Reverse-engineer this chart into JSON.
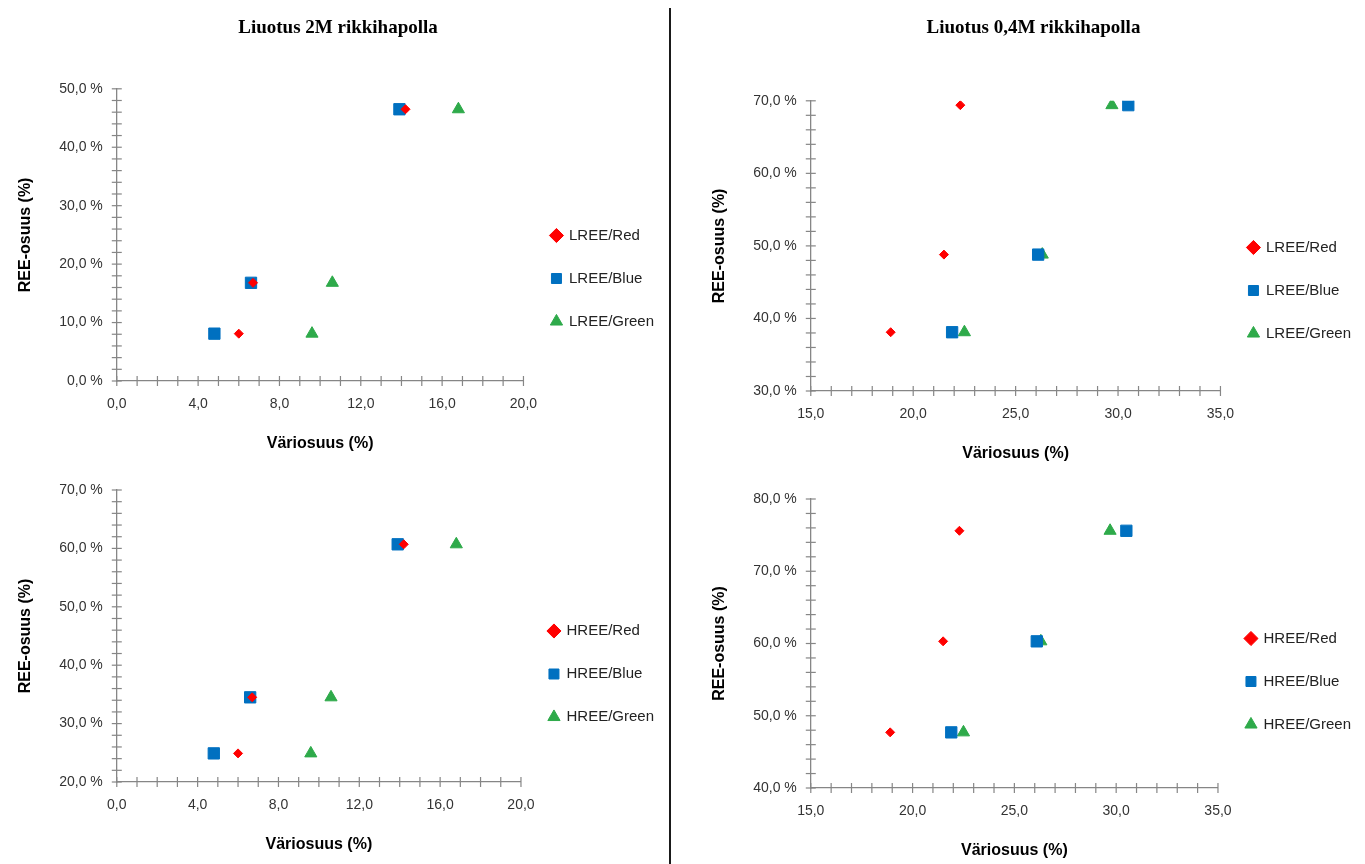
{
  "chart_data": [
    {
      "type": "scatter",
      "title": "Liuotus 2M rikkihapolla",
      "xlabel": "Väriosuus (%)",
      "ylabel": "REE-osuus (%)",
      "legend": "right",
      "xlim": [
        0,
        20
      ],
      "ylim": [
        0,
        50
      ],
      "xticks": [
        {
          "value": 0,
          "label": "0,0"
        },
        {
          "value": 1,
          "label": null
        },
        {
          "value": 2,
          "label": null
        },
        {
          "value": 3,
          "label": null
        },
        {
          "value": 4,
          "label": "4,0"
        },
        {
          "value": 5,
          "label": null
        },
        {
          "value": 6,
          "label": null
        },
        {
          "value": 7,
          "label": null
        },
        {
          "value": 8,
          "label": "8,0"
        },
        {
          "value": 9,
          "label": null
        },
        {
          "value": 10,
          "label": null
        },
        {
          "value": 11,
          "label": null
        },
        {
          "value": 12,
          "label": "12,0"
        },
        {
          "value": 13,
          "label": null
        },
        {
          "value": 14,
          "label": null
        },
        {
          "value": 15,
          "label": null
        },
        {
          "value": 16,
          "label": "16,0"
        },
        {
          "value": 17,
          "label": null
        },
        {
          "value": 18,
          "label": null
        },
        {
          "value": 19,
          "label": null
        },
        {
          "value": 20,
          "label": "20,0"
        }
      ],
      "yticks": [
        {
          "value": 0,
          "label": "0,0 %"
        },
        {
          "value": 2,
          "label": null
        },
        {
          "value": 4,
          "label": null
        },
        {
          "value": 6,
          "label": null
        },
        {
          "value": 8,
          "label": null
        },
        {
          "value": 10,
          "label": "10,0 %"
        },
        {
          "value": 12,
          "label": null
        },
        {
          "value": 14,
          "label": null
        },
        {
          "value": 16,
          "label": null
        },
        {
          "value": 18,
          "label": null
        },
        {
          "value": 20,
          "label": "20,0 %"
        },
        {
          "value": 22,
          "label": null
        },
        {
          "value": 24,
          "label": null
        },
        {
          "value": 26,
          "label": null
        },
        {
          "value": 28,
          "label": null
        },
        {
          "value": 30,
          "label": "30,0 %"
        },
        {
          "value": 32,
          "label": null
        },
        {
          "value": 34,
          "label": null
        },
        {
          "value": 36,
          "label": null
        },
        {
          "value": 38,
          "label": null
        },
        {
          "value": 40,
          "label": "40,0 %"
        },
        {
          "value": 42,
          "label": null
        },
        {
          "value": 44,
          "label": null
        },
        {
          "value": 46,
          "label": null
        },
        {
          "value": 48,
          "label": null
        },
        {
          "value": 50,
          "label": "50,0 %"
        }
      ],
      "series": [
        {
          "name": "LREE/Red",
          "color": "#ff0000",
          "marker": "diamond",
          "x": [
            6.0,
            6.7,
            14.2
          ],
          "values": [
            8.1,
            16.8,
            46.5
          ]
        },
        {
          "name": "LREE/Blue",
          "color": "#0070c0",
          "marker": "square",
          "x": [
            4.8,
            6.6,
            13.9
          ],
          "values": [
            8.1,
            16.8,
            46.5
          ]
        },
        {
          "name": "LREE/Green",
          "color": "#2eaa4a",
          "marker": "triangle",
          "x": [
            9.6,
            10.6,
            16.8
          ],
          "values": [
            8.1,
            16.8,
            46.5
          ]
        }
      ]
    },
    {
      "type": "scatter",
      "title": "Liuotus 0,4M rikkihapolla",
      "xlabel": "Väriosuus (%)",
      "ylabel": "REE-osuus (%)",
      "legend": "right",
      "xlim": [
        15,
        35
      ],
      "ylim": [
        30,
        70
      ],
      "xticks": [
        {
          "value": 15,
          "label": "15,0"
        },
        {
          "value": 16,
          "label": null
        },
        {
          "value": 17,
          "label": null
        },
        {
          "value": 18,
          "label": null
        },
        {
          "value": 19,
          "label": null
        },
        {
          "value": 20,
          "label": "20,0"
        },
        {
          "value": 21,
          "label": null
        },
        {
          "value": 22,
          "label": null
        },
        {
          "value": 23,
          "label": null
        },
        {
          "value": 24,
          "label": null
        },
        {
          "value": 25,
          "label": "25,0"
        },
        {
          "value": 26,
          "label": null
        },
        {
          "value": 27,
          "label": null
        },
        {
          "value": 28,
          "label": null
        },
        {
          "value": 29,
          "label": null
        },
        {
          "value": 30,
          "label": "30,0"
        },
        {
          "value": 31,
          "label": null
        },
        {
          "value": 32,
          "label": null
        },
        {
          "value": 33,
          "label": null
        },
        {
          "value": 34,
          "label": null
        },
        {
          "value": 35,
          "label": "35,0"
        }
      ],
      "yticks": [
        {
          "value": 30,
          "label": "30,0 %"
        },
        {
          "value": 32,
          "label": null
        },
        {
          "value": 34,
          "label": null
        },
        {
          "value": 36,
          "label": null
        },
        {
          "value": 38,
          "label": null
        },
        {
          "value": 40,
          "label": "40,0 %"
        },
        {
          "value": 42,
          "label": null
        },
        {
          "value": 44,
          "label": null
        },
        {
          "value": 46,
          "label": null
        },
        {
          "value": 48,
          "label": null
        },
        {
          "value": 50,
          "label": "50,0 %"
        },
        {
          "value": 52,
          "label": null
        },
        {
          "value": 54,
          "label": null
        },
        {
          "value": 56,
          "label": null
        },
        {
          "value": 58,
          "label": null
        },
        {
          "value": 60,
          "label": "60,0 %"
        },
        {
          "value": 62,
          "label": null
        },
        {
          "value": 64,
          "label": null
        },
        {
          "value": 66,
          "label": null
        },
        {
          "value": 68,
          "label": null
        },
        {
          "value": 70,
          "label": "70,0 %"
        }
      ],
      "series": [
        {
          "name": "LREE/Red",
          "color": "#ff0000",
          "marker": "diamond",
          "x": [
            18.9,
            21.5,
            22.3
          ],
          "values": [
            38.1,
            48.8,
            69.4
          ]
        },
        {
          "name": "LREE/Blue",
          "color": "#0070c0",
          "marker": "square",
          "x": [
            21.9,
            26.1,
            30.5
          ],
          "values": [
            38.1,
            48.8,
            69.4
          ]
        },
        {
          "name": "LREE/Green",
          "color": "#2eaa4a",
          "marker": "triangle",
          "x": [
            22.5,
            26.3,
            29.7
          ],
          "values": [
            38.1,
            48.8,
            69.4
          ]
        }
      ]
    },
    {
      "type": "scatter",
      "xlabel": "Väriosuus (%)",
      "ylabel": "REE-osuus (%)",
      "legend": "right",
      "xlim": [
        0,
        20
      ],
      "ylim": [
        20,
        70
      ],
      "xticks": [
        {
          "value": 0,
          "label": "0,0"
        },
        {
          "value": 1,
          "label": null
        },
        {
          "value": 2,
          "label": null
        },
        {
          "value": 3,
          "label": null
        },
        {
          "value": 4,
          "label": "4,0"
        },
        {
          "value": 5,
          "label": null
        },
        {
          "value": 6,
          "label": null
        },
        {
          "value": 7,
          "label": null
        },
        {
          "value": 8,
          "label": "8,0"
        },
        {
          "value": 9,
          "label": null
        },
        {
          "value": 10,
          "label": null
        },
        {
          "value": 11,
          "label": null
        },
        {
          "value": 12,
          "label": "12,0"
        },
        {
          "value": 13,
          "label": null
        },
        {
          "value": 14,
          "label": null
        },
        {
          "value": 15,
          "label": null
        },
        {
          "value": 16,
          "label": "16,0"
        },
        {
          "value": 17,
          "label": null
        },
        {
          "value": 18,
          "label": null
        },
        {
          "value": 19,
          "label": null
        },
        {
          "value": 20,
          "label": "20,0"
        }
      ],
      "yticks": [
        {
          "value": 20,
          "label": "20,0 %"
        },
        {
          "value": 22,
          "label": null
        },
        {
          "value": 24,
          "label": null
        },
        {
          "value": 26,
          "label": null
        },
        {
          "value": 28,
          "label": null
        },
        {
          "value": 30,
          "label": "30,0 %"
        },
        {
          "value": 32,
          "label": null
        },
        {
          "value": 34,
          "label": null
        },
        {
          "value": 36,
          "label": null
        },
        {
          "value": 38,
          "label": null
        },
        {
          "value": 40,
          "label": "40,0 %"
        },
        {
          "value": 42,
          "label": null
        },
        {
          "value": 44,
          "label": null
        },
        {
          "value": 46,
          "label": null
        },
        {
          "value": 48,
          "label": null
        },
        {
          "value": 50,
          "label": "50,0 %"
        },
        {
          "value": 52,
          "label": null
        },
        {
          "value": 54,
          "label": null
        },
        {
          "value": 56,
          "label": null
        },
        {
          "value": 58,
          "label": null
        },
        {
          "value": 60,
          "label": "60,0 %"
        },
        {
          "value": 62,
          "label": null
        },
        {
          "value": 64,
          "label": null
        },
        {
          "value": 66,
          "label": null
        },
        {
          "value": 68,
          "label": null
        },
        {
          "value": 70,
          "label": "70,0 %"
        }
      ],
      "series": [
        {
          "name": "HREE/Red",
          "color": "#ff0000",
          "marker": "diamond",
          "x": [
            6.0,
            6.7,
            14.2
          ],
          "values": [
            24.9,
            34.5,
            60.7
          ]
        },
        {
          "name": "HREE/Blue",
          "color": "#0070c0",
          "marker": "square",
          "x": [
            4.8,
            6.6,
            13.9
          ],
          "values": [
            24.9,
            34.5,
            60.7
          ]
        },
        {
          "name": "HREE/Green",
          "color": "#2eaa4a",
          "marker": "triangle",
          "x": [
            9.6,
            10.6,
            16.8
          ],
          "values": [
            24.9,
            34.5,
            60.7
          ]
        }
      ]
    },
    {
      "type": "scatter",
      "xlabel": "Väriosuus (%)",
      "ylabel": "REE-osuus (%)",
      "legend": "right",
      "xlim": [
        15,
        35
      ],
      "ylim": [
        40,
        80
      ],
      "xticks": [
        {
          "value": 15,
          "label": "15,0"
        },
        {
          "value": 16,
          "label": null
        },
        {
          "value": 17,
          "label": null
        },
        {
          "value": 18,
          "label": null
        },
        {
          "value": 19,
          "label": null
        },
        {
          "value": 20,
          "label": "20,0"
        },
        {
          "value": 21,
          "label": null
        },
        {
          "value": 22,
          "label": null
        },
        {
          "value": 23,
          "label": null
        },
        {
          "value": 24,
          "label": null
        },
        {
          "value": 25,
          "label": "25,0"
        },
        {
          "value": 26,
          "label": null
        },
        {
          "value": 27,
          "label": null
        },
        {
          "value": 28,
          "label": null
        },
        {
          "value": 29,
          "label": null
        },
        {
          "value": 30,
          "label": "30,0"
        },
        {
          "value": 31,
          "label": null
        },
        {
          "value": 32,
          "label": null
        },
        {
          "value": 33,
          "label": null
        },
        {
          "value": 34,
          "label": null
        },
        {
          "value": 35,
          "label": "35,0"
        }
      ],
      "yticks": [
        {
          "value": 40,
          "label": "40,0 %"
        },
        {
          "value": 42,
          "label": null
        },
        {
          "value": 44,
          "label": null
        },
        {
          "value": 46,
          "label": null
        },
        {
          "value": 48,
          "label": null
        },
        {
          "value": 50,
          "label": "50,0 %"
        },
        {
          "value": 52,
          "label": null
        },
        {
          "value": 54,
          "label": null
        },
        {
          "value": 56,
          "label": null
        },
        {
          "value": 58,
          "label": null
        },
        {
          "value": 60,
          "label": "60,0 %"
        },
        {
          "value": 62,
          "label": null
        },
        {
          "value": 64,
          "label": null
        },
        {
          "value": 66,
          "label": null
        },
        {
          "value": 68,
          "label": null
        },
        {
          "value": 70,
          "label": "70,0 %"
        },
        {
          "value": 72,
          "label": null
        },
        {
          "value": 74,
          "label": null
        },
        {
          "value": 76,
          "label": null
        },
        {
          "value": 78,
          "label": null
        },
        {
          "value": 80,
          "label": "80,0 %"
        }
      ],
      "series": [
        {
          "name": "HREE/Red",
          "color": "#ff0000",
          "marker": "diamond",
          "x": [
            18.9,
            21.5,
            22.3
          ],
          "values": [
            47.7,
            60.3,
            75.6
          ]
        },
        {
          "name": "HREE/Blue",
          "color": "#0070c0",
          "marker": "square",
          "x": [
            21.9,
            26.1,
            30.5
          ],
          "values": [
            47.7,
            60.3,
            75.6
          ]
        },
        {
          "name": "HREE/Green",
          "color": "#2eaa4a",
          "marker": "triangle",
          "x": [
            22.5,
            26.3,
            29.7
          ],
          "values": [
            47.7,
            60.3,
            75.6
          ]
        }
      ]
    }
  ]
}
